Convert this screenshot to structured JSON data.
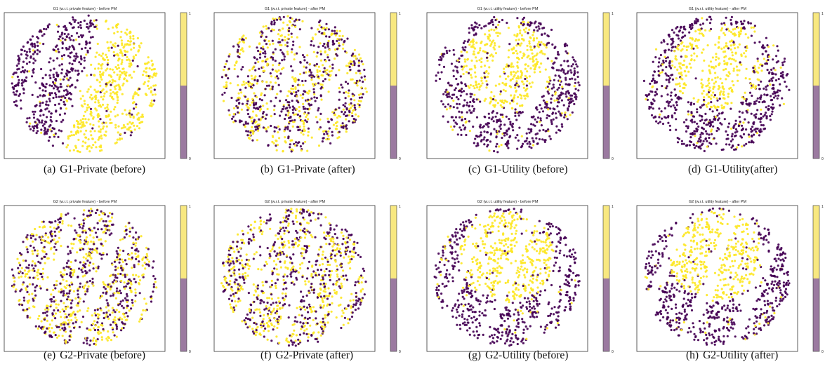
{
  "colors": {
    "purple": "#440154",
    "yellow": "#fde725",
    "frame": "#333333"
  },
  "colorbar": {
    "tick_top": "1",
    "tick_bottom": "0"
  },
  "chart_data": [
    {
      "id": "a",
      "type": "scatter",
      "title": "G1 (w.r.t. private feature) - before PM",
      "caption_tag": "(a)",
      "caption_text": "G1-Private (before)",
      "colorbar_ticks": [
        "1",
        "0"
      ],
      "mix": "separated",
      "shape": "g1"
    },
    {
      "id": "b",
      "type": "scatter",
      "title": "G1 (w.r.t. private feature) - after PM",
      "caption_tag": "(b)",
      "caption_text": "G1-Private (after)",
      "colorbar_ticks": [
        "1",
        "0"
      ],
      "mix": "mixed",
      "shape": "g1"
    },
    {
      "id": "c",
      "type": "scatter",
      "title": "G1 (w.r.t. utility feature) - before PM",
      "caption_tag": "(c)",
      "caption_text": "G1-Utility (before)",
      "colorbar_ticks": [
        "1",
        "0"
      ],
      "mix": "utility",
      "shape": "g1"
    },
    {
      "id": "d",
      "type": "scatter",
      "title": "G1 (w.r.t. utility feature) - after PM",
      "caption_tag": "(d)",
      "caption_text": "G1-Utility(after)",
      "colorbar_ticks": [
        "1",
        "0"
      ],
      "mix": "utility",
      "shape": "g1"
    },
    {
      "id": "e",
      "type": "scatter",
      "title": "G2 (w.r.t. private feature) - before PM",
      "caption_tag": "(e)",
      "caption_text": "G2-Private (before)",
      "colorbar_ticks": [
        "1",
        "0"
      ],
      "mix": "mixed",
      "shape": "g2"
    },
    {
      "id": "f",
      "type": "scatter",
      "title": "G2 (w.r.t. private feature) - after PM",
      "caption_tag": "(f)",
      "caption_text": "G2-Private (after)",
      "colorbar_ticks": [
        "1",
        "0"
      ],
      "mix": "mixed",
      "shape": "g2"
    },
    {
      "id": "g",
      "type": "scatter",
      "title": "G2 (w.r.t. utility feature) - before PM",
      "caption_tag": "(g)",
      "caption_text": "G2-Utility (before)",
      "colorbar_ticks": [
        "1",
        "0"
      ],
      "mix": "utility2",
      "shape": "g2"
    },
    {
      "id": "h",
      "type": "scatter",
      "title": "G2 (w.r.t. utility feature) - after PM",
      "caption_tag": "(h)",
      "caption_text": "G2-Utility (after)",
      "colorbar_ticks": [
        "1",
        "0"
      ],
      "mix": "utility2",
      "shape": "g2"
    }
  ]
}
